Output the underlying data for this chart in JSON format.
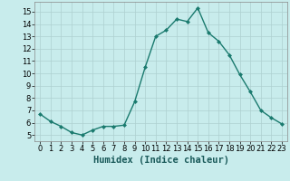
{
  "x": [
    0,
    1,
    2,
    3,
    4,
    5,
    6,
    7,
    8,
    9,
    10,
    11,
    12,
    13,
    14,
    15,
    16,
    17,
    18,
    19,
    20,
    21,
    22,
    23
  ],
  "y": [
    6.7,
    6.1,
    5.7,
    5.2,
    5.0,
    5.4,
    5.7,
    5.7,
    5.8,
    7.7,
    10.5,
    13.0,
    13.5,
    14.4,
    14.2,
    15.3,
    13.3,
    12.6,
    11.5,
    9.9,
    8.5,
    7.0,
    6.4,
    5.9
  ],
  "line_color": "#1a7a6e",
  "marker": "D",
  "marker_size": 2,
  "line_width": 1.0,
  "bg_color": "#c8ecec",
  "grid_color": "#aed0d0",
  "xlabel": "Humidex (Indice chaleur)",
  "ylim": [
    4.5,
    15.8
  ],
  "xlim": [
    -0.5,
    23.5
  ],
  "yticks": [
    5,
    6,
    7,
    8,
    9,
    10,
    11,
    12,
    13,
    14,
    15
  ],
  "xticks": [
    0,
    1,
    2,
    3,
    4,
    5,
    6,
    7,
    8,
    9,
    10,
    11,
    12,
    13,
    14,
    15,
    16,
    17,
    18,
    19,
    20,
    21,
    22,
    23
  ],
  "tick_fontsize": 6,
  "xlabel_fontsize": 7.5,
  "xlabel_fontweight": "bold"
}
